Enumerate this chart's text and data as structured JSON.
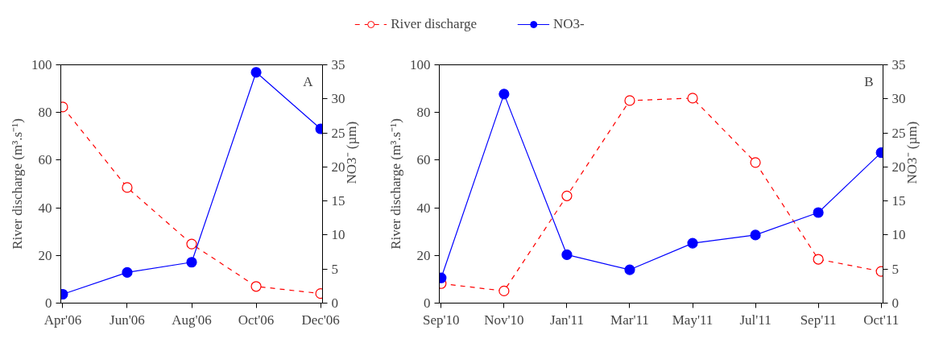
{
  "chart_data": [
    {
      "type": "line",
      "annotations": [
        "A"
      ],
      "ylabel": "River discharge (m³.s⁻¹)",
      "y2label": "NO3⁻ (µm)",
      "categories": [
        "Apr'06",
        "Jun'06",
        "Aug'06",
        "Oct'06",
        "Dec'06"
      ],
      "legend": "top",
      "marker": "circle",
      "grid": false,
      "series": [
        {
          "name": "River discharge",
          "color": "#ff0000",
          "line_style": "dashed",
          "values": [
            82.3,
            48.5,
            24.8,
            7,
            4
          ]
        },
        {
          "name": "NO3-",
          "color": "#0000ff",
          "line_style": "solid",
          "axis": "y2",
          "values": [
            1.3,
            4.5,
            6.0,
            33.9,
            25.6
          ]
        }
      ],
      "ylim": [
        0,
        100
      ],
      "yticks": [
        0,
        20,
        40,
        60,
        80,
        100
      ],
      "y2lim": [
        0,
        35
      ],
      "y2ticks": [
        0,
        5,
        10,
        15,
        20,
        25,
        30,
        35
      ]
    },
    {
      "type": "line",
      "annotations": [
        "B"
      ],
      "ylabel": "River discharge (m³.s⁻¹)",
      "y2label": "NO3⁻ (µm)",
      "categories": [
        "Sep'10",
        "Nov'10",
        "Jan'11",
        "Mar'11",
        "May'11",
        "Jul'11",
        "Sep'11",
        "Oct'11"
      ],
      "marker": "circle",
      "grid": false,
      "series": [
        {
          "color": "#ff0000",
          "line_style": "dashed",
          "values": [
            8.2,
            5.1,
            45,
            85,
            86,
            59,
            18.4,
            13.3
          ]
        },
        {
          "color": "#0000ff",
          "line_style": "solid",
          "axis": "y2",
          "values": [
            3.7,
            30.7,
            7.1,
            4.9,
            8.8,
            10.0,
            13.3,
            22.1
          ]
        }
      ],
      "ylim": [
        0,
        100
      ],
      "yticks": [
        0,
        20,
        40,
        60,
        80,
        100
      ],
      "y2lim": [
        0,
        35
      ],
      "y2ticks": [
        0,
        5,
        10,
        15,
        20,
        25,
        30,
        35
      ]
    }
  ]
}
